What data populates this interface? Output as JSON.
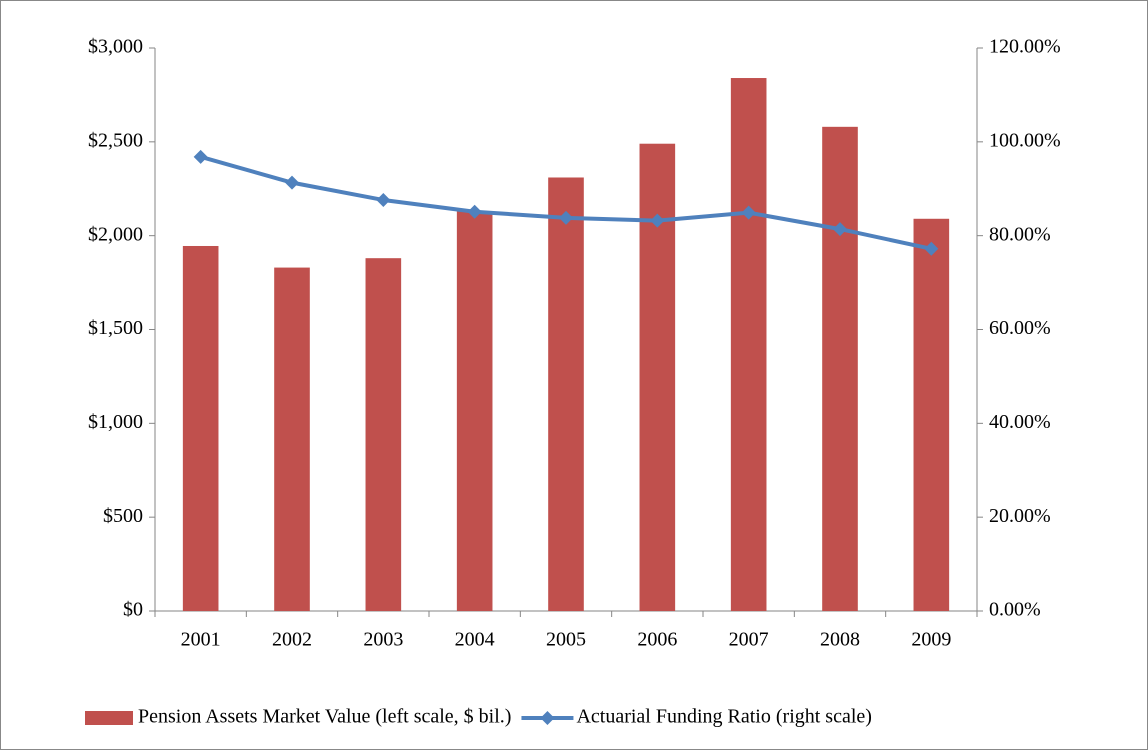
{
  "chart_data": {
    "type": "bar_line",
    "categories": [
      "2001",
      "2002",
      "2003",
      "2004",
      "2005",
      "2006",
      "2007",
      "2008",
      "2009"
    ],
    "series": [
      {
        "name": "Pension Assets Market Value (left scale, $ bil.)",
        "type": "bar",
        "color": "#c0504d",
        "axis": "y",
        "values": [
          1945,
          1830,
          1880,
          2130,
          2310,
          2490,
          2840,
          2580,
          2090
        ]
      },
      {
        "name": "Actuarial Funding Ratio (right scale)",
        "type": "line",
        "color": "#4f81bd",
        "axis": "y2",
        "values": [
          96.8,
          91.3,
          87.6,
          85.1,
          83.8,
          83.2,
          84.9,
          81.4,
          77.2
        ]
      }
    ],
    "ylim": [
      0,
      3000
    ],
    "yticks": [
      {
        "value": 0,
        "label": "$0"
      },
      {
        "value": 500,
        "label": "$500"
      },
      {
        "value": 1000,
        "label": "$1,000"
      },
      {
        "value": 1500,
        "label": "$1,500"
      },
      {
        "value": 2000,
        "label": "$2,000"
      },
      {
        "value": 2500,
        "label": "$2,500"
      },
      {
        "value": 3000,
        "label": "$3,000"
      }
    ],
    "y2lim": [
      0,
      120
    ],
    "y2ticks": [
      {
        "value": 0,
        "label": "0.00%"
      },
      {
        "value": 20,
        "label": "20.00%"
      },
      {
        "value": 40,
        "label": "40.00%"
      },
      {
        "value": 60,
        "label": "60.00%"
      },
      {
        "value": 80,
        "label": "80.00%"
      },
      {
        "value": 100,
        "label": "100.00%"
      },
      {
        "value": 120,
        "label": "120.00%"
      }
    ],
    "grid": false,
    "legend": "bottom"
  }
}
